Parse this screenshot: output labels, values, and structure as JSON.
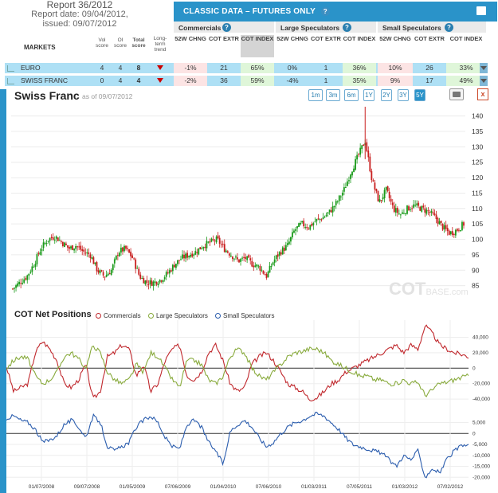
{
  "header": {
    "report_title": "Report 36/2012",
    "report_date": "Report date: 09/04/2012,",
    "issued": "issued: 09/07/2012",
    "classic_title": "CLASSIC DATA – FUTURES ONLY",
    "help_glyph": "?"
  },
  "table": {
    "markets_label": "MARKETS",
    "vol_score": "Vol score",
    "oi_score": "OI score",
    "total_score": "Total score",
    "long_term_trend": "Long-term trend",
    "groups": [
      "Commercials",
      "Large Speculators",
      "Small Speculators"
    ],
    "col_labels": [
      "52W CHNG",
      "COT EXTR",
      "COT INDEX",
      "52W CHNG",
      "COT EXTR",
      "COT INDEX",
      "52W CHNG",
      "COT EXTR",
      "COT INDEX"
    ],
    "rows": [
      {
        "name": "EURO",
        "vol": "4",
        "oi": "4",
        "total": "8",
        "trend": "down",
        "cells": [
          "-1%",
          "21",
          "65%",
          "0%",
          "1",
          "36%",
          "10%",
          "26",
          "33%"
        ]
      },
      {
        "name": "SWISS FRANC",
        "vol": "0",
        "oi": "4",
        "total": "4",
        "trend": "down",
        "cells": [
          "-2%",
          "36",
          "59%",
          "-4%",
          "1",
          "35%",
          "9%",
          "17",
          "49%"
        ]
      }
    ]
  },
  "price_chart": {
    "title": "Swiss Franc",
    "as_of": "as of 09/07/2012",
    "ranges": [
      "1m",
      "3m",
      "6m",
      "1Y",
      "2Y",
      "3Y",
      "5Y"
    ],
    "selected_range": "5Y",
    "close_glyph": "x",
    "watermark_main": "COT",
    "watermark_sub": "BASE.com"
  },
  "net_positions": {
    "title": "COT Net Positions",
    "legend": [
      "Commercials",
      "Large Speculators",
      "Small Speculators"
    ]
  },
  "chart_data": [
    {
      "type": "candlestick",
      "title": "Swiss Franc",
      "ylim": [
        80,
        143
      ],
      "yticks": [
        "85",
        "90",
        "95",
        "100",
        "105",
        "110",
        "115",
        "120",
        "125",
        "130",
        "135",
        "140"
      ],
      "xticks": [
        "01/07/2008",
        "09/07/2008",
        "01/05/2009",
        "07/06/2009",
        "01/04/2010",
        "07/06/2010",
        "01/03/2011",
        "07/05/2011",
        "01/03/2012",
        "07/02/2012"
      ],
      "close_series": [
        84,
        86,
        88,
        92,
        97,
        100,
        101,
        99,
        97,
        98,
        96,
        95,
        90,
        88,
        90,
        96,
        97,
        94,
        88,
        86,
        86,
        87,
        89,
        92,
        94,
        95,
        96,
        98,
        99,
        100,
        97,
        95,
        93,
        94,
        92,
        91,
        88,
        93,
        96,
        98,
        103,
        105,
        104,
        106,
        107,
        109,
        112,
        116,
        122,
        127,
        132,
        119,
        112,
        116,
        110,
        108,
        110,
        111,
        110,
        109,
        107,
        104,
        102,
        103,
        105
      ],
      "colors": {
        "up": "#1a9a1a",
        "down": "#c81e1e"
      }
    },
    {
      "type": "line",
      "title": "COT Net Positions",
      "yticks": [
        "40,000",
        "20,000",
        "0",
        "-20,000",
        "-40,000"
      ],
      "ylim": [
        -45000,
        58000
      ],
      "series": [
        {
          "name": "Commercials",
          "color": "#c0282d",
          "values": [
            2000,
            -30000,
            -25000,
            -20000,
            20000,
            35000,
            25000,
            10000,
            -20000,
            -25000,
            -15000,
            5000,
            -40000,
            -30000,
            15000,
            20000,
            30000,
            25000,
            -10000,
            5000,
            -30000,
            -20000,
            10000,
            25000,
            30000,
            -10000,
            -15000,
            -5000,
            20000,
            30000,
            10000,
            -20000,
            -30000,
            -25000,
            5000,
            15000,
            20000,
            10000,
            -5000,
            -20000,
            -25000,
            -30000,
            -40000,
            -38000,
            -30000,
            -20000,
            -15000,
            -5000,
            0,
            5000,
            10000,
            15000,
            20000,
            25000,
            30000,
            20000,
            30000,
            25000,
            55000,
            45000,
            30000,
            25000,
            20000,
            18000,
            15000
          ]
        },
        {
          "name": "Large Speculators",
          "color": "#88aa3c",
          "values": [
            0,
            10000,
            15000,
            12000,
            -10000,
            -20000,
            -15000,
            -5000,
            15000,
            20000,
            12000,
            0,
            30000,
            20000,
            -5000,
            -15000,
            -20000,
            -15000,
            5000,
            -5000,
            20000,
            15000,
            0,
            -15000,
            -25000,
            10000,
            10000,
            5000,
            -15000,
            -20000,
            -10000,
            15000,
            25000,
            20000,
            0,
            -10000,
            -15000,
            -5000,
            5000,
            15000,
            20000,
            22000,
            25000,
            25000,
            20000,
            10000,
            5000,
            0,
            -5000,
            -10000,
            -10000,
            -15000,
            -15000,
            -20000,
            -20000,
            -15000,
            -20000,
            -18000,
            -35000,
            -28000,
            -20000,
            -18000,
            -15000,
            -12000,
            -10000
          ]
        }
      ]
    },
    {
      "type": "line",
      "title": "Small Speculators",
      "yticks": [
        "5,000",
        "0",
        "-5,000",
        "-10,000",
        "-15,000",
        "-20,000"
      ],
      "ylim": [
        -21000,
        11000
      ],
      "series": [
        {
          "name": "Small Speculators",
          "color": "#2a5cad",
          "values": [
            7000,
            8000,
            6000,
            5000,
            2000,
            -4000,
            -3000,
            -1000,
            4000,
            6000,
            3000,
            -2000,
            8000,
            5000,
            -6000,
            -8000,
            -6000,
            -4000,
            3000,
            6000,
            8000,
            5000,
            -2000,
            -6000,
            -7000,
            4000,
            6000,
            3000,
            -4000,
            -8000,
            -14000,
            1000,
            4000,
            6000,
            3000,
            -2000,
            -6000,
            -4000,
            0,
            3000,
            5000,
            6000,
            8000,
            9000,
            8000,
            5000,
            2000,
            -2000,
            -5000,
            -6000,
            -7000,
            -8000,
            -9000,
            -12000,
            -15000,
            -10000,
            -12000,
            -8000,
            -20000,
            -16000,
            -18000,
            -12000,
            -8000,
            -6000,
            -5000
          ]
        }
      ]
    }
  ]
}
